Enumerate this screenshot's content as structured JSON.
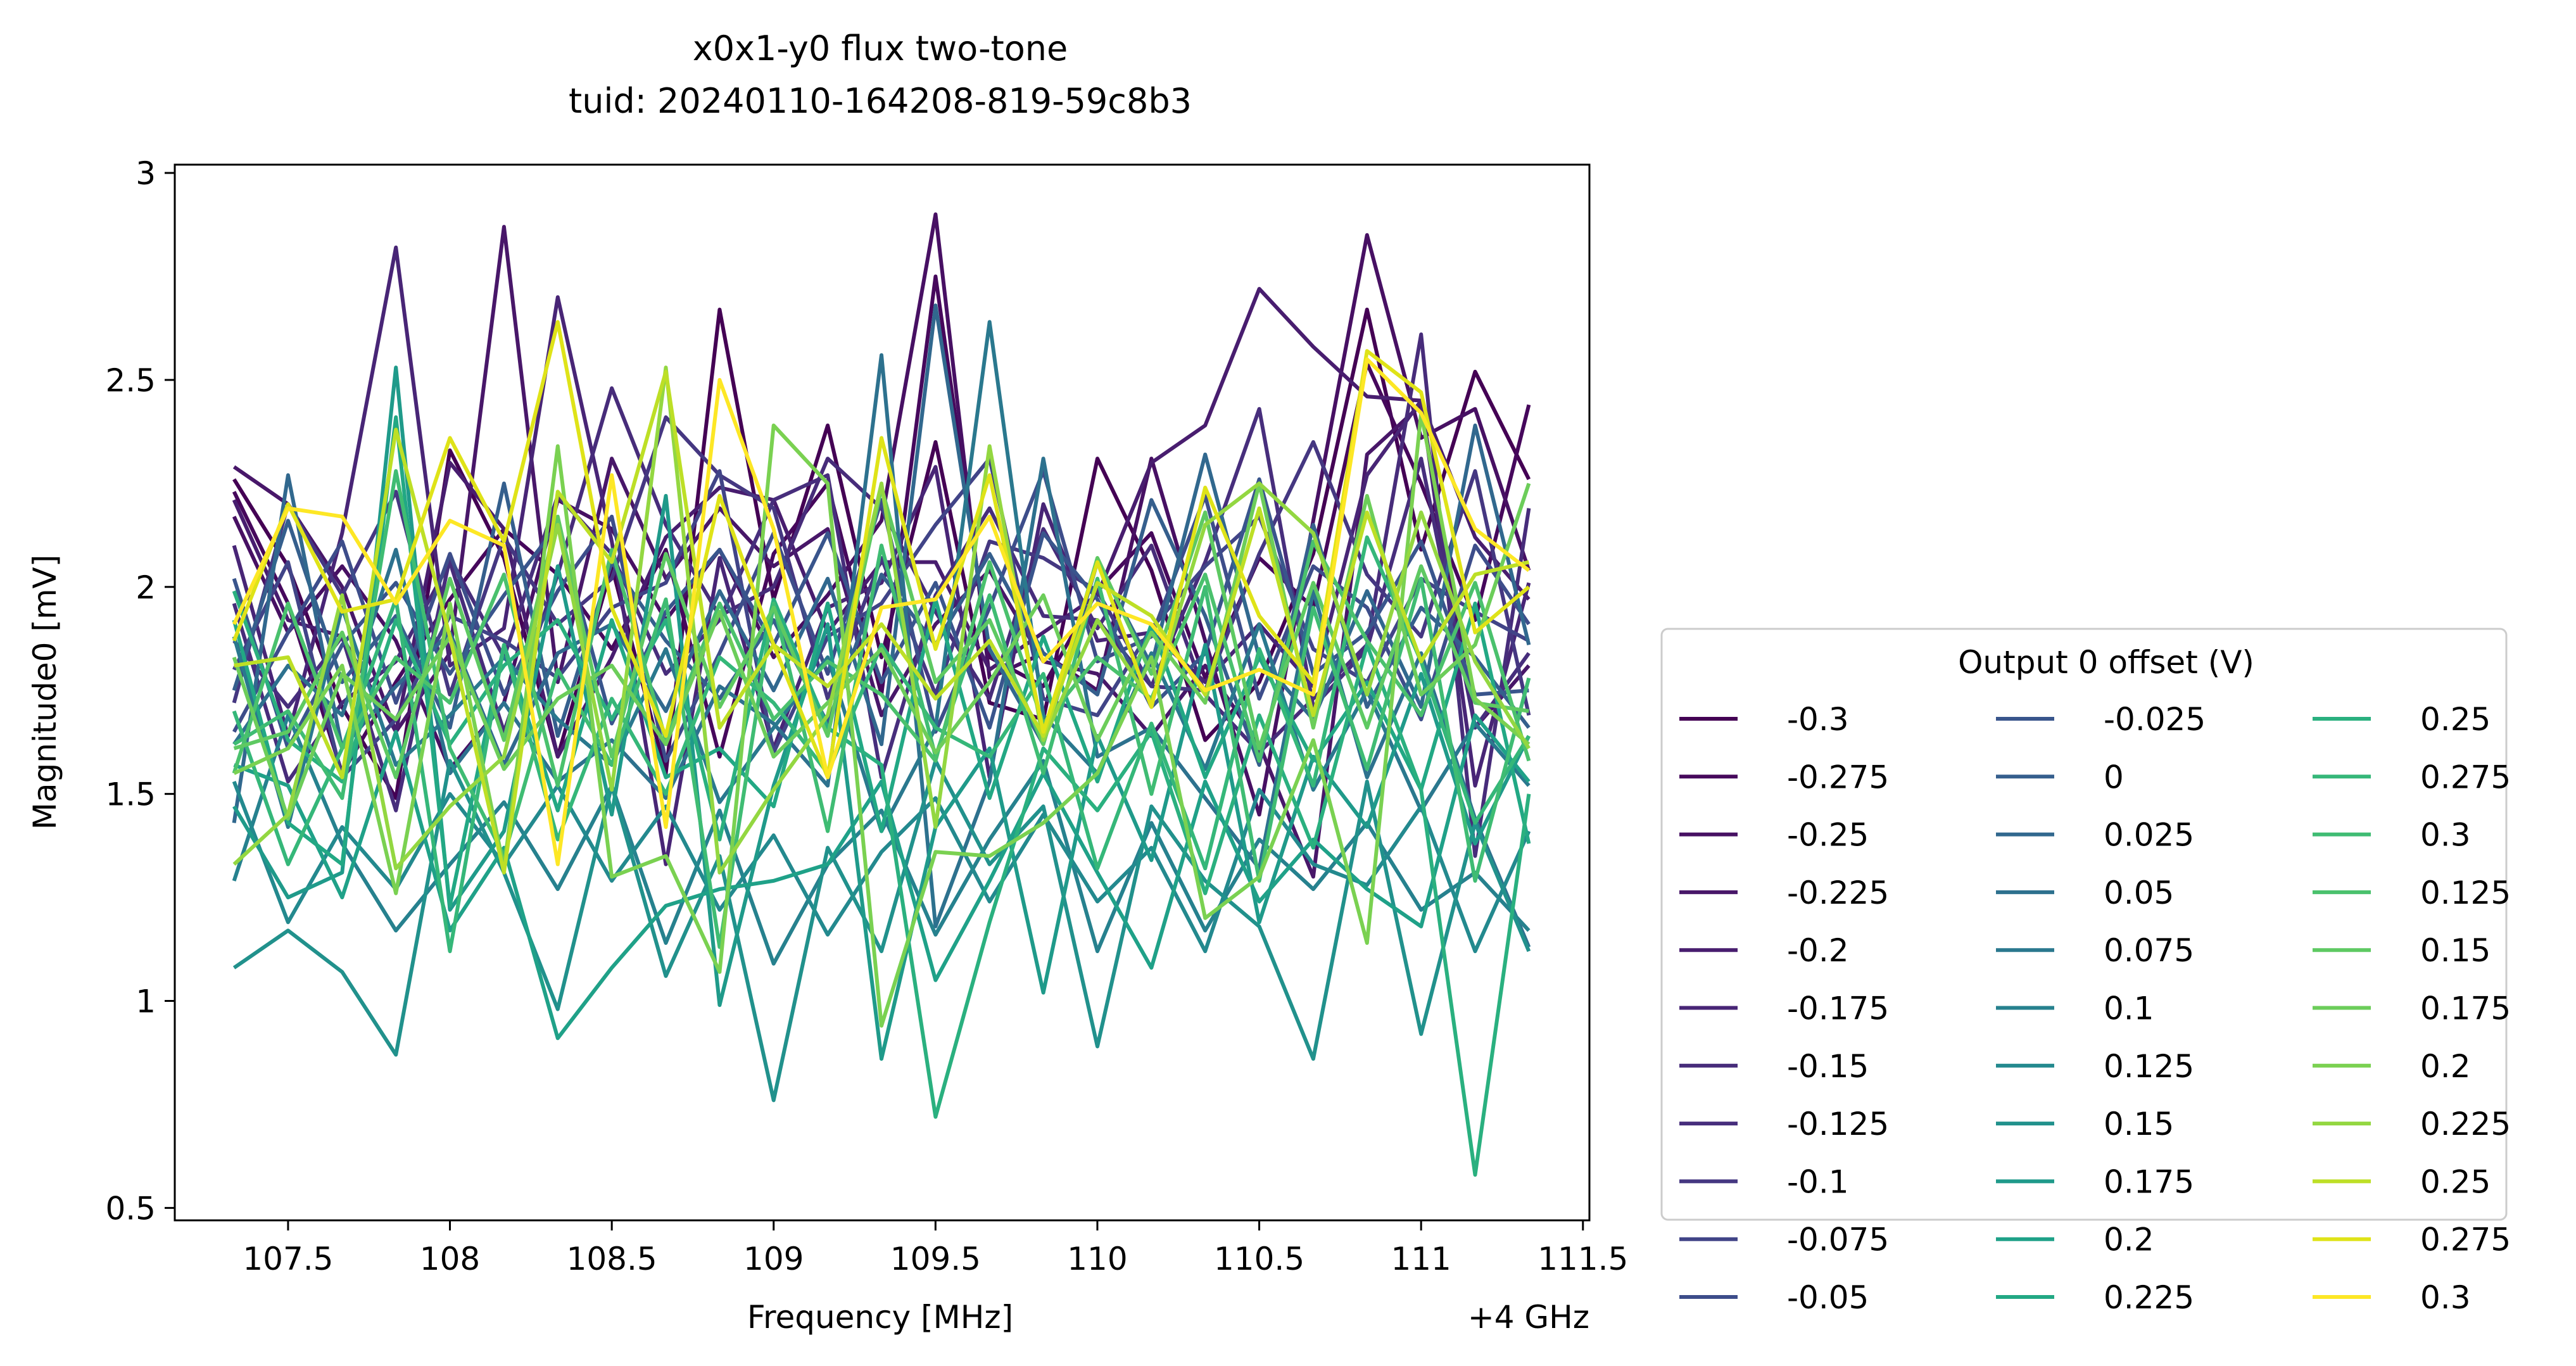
{
  "chart_data": {
    "type": "line",
    "title": "x0x1-y0 flux two-tone",
    "subtitle": "tuid: 20240110-164208-819-59c8b3",
    "xlabel": "Frequency [MHz]",
    "ylabel": "Magnitude0 [mV]",
    "x_offset_label": "+4 GHz",
    "xlim": [
      107.15,
      111.52
    ],
    "ylim": [
      0.47,
      3.02
    ],
    "x_ticks": [
      "107.5",
      "108",
      "108.5",
      "109",
      "109.5",
      "110",
      "110.5",
      "111",
      "111.5"
    ],
    "x_tick_values": [
      107.5,
      108,
      108.5,
      109,
      109.5,
      110,
      110.5,
      111,
      111.5
    ],
    "y_ticks": [
      "0.5",
      "1",
      "1.5",
      "2",
      "2.5",
      "3"
    ],
    "y_tick_values": [
      0.5,
      1,
      1.5,
      2,
      2.5,
      3
    ],
    "grid": false,
    "legend_title": "Output 0 offset (V)",
    "legend_position": "right",
    "legend_columns": 3,
    "x": [
      107.333,
      107.5,
      107.667,
      107.833,
      108.0,
      108.167,
      108.333,
      108.5,
      108.667,
      108.833,
      109.0,
      109.167,
      109.333,
      109.5,
      109.667,
      109.833,
      110.0,
      110.167,
      110.333,
      110.5,
      110.667,
      110.833,
      111.0,
      111.167,
      111.333
    ],
    "series": [
      {
        "name": "-0.3",
        "color": "#440154",
        "values": [
          2.26,
          2.05,
          1.71,
          1.49,
          2.33,
          2.07,
          1.59,
          2.05,
          1.55,
          2.67,
          1.97,
          2.39,
          1.83,
          2.35,
          1.72,
          1.68,
          2.31,
          2.04,
          1.63,
          1.77,
          2.08,
          2.67,
          2.09,
          2.52,
          2.26
        ]
      },
      {
        "name": "-0.275",
        "color": "#46085c",
        "values": [
          2.23,
          1.96,
          1.55,
          1.77,
          1.97,
          2.14,
          2.03,
          1.85,
          2.09,
          1.59,
          2.08,
          2.25,
          1.74,
          2.75,
          1.83,
          1.76,
          1.99,
          2.13,
          1.78,
          2.07,
          1.95,
          2.54,
          2.25,
          1.92,
          2.44
        ]
      },
      {
        "name": "-0.25",
        "color": "#471063",
        "values": [
          2.17,
          1.89,
          2.05,
          1.87,
          1.56,
          1.72,
          2.21,
          2.14,
          1.92,
          2.09,
          1.83,
          1.98,
          2.16,
          2.9,
          1.78,
          1.84,
          1.75,
          2.31,
          1.87,
          1.45,
          2.16,
          2.85,
          2.36,
          2.43,
          2.04
        ]
      },
      {
        "name": "-0.225",
        "color": "#481769",
        "values": [
          2.29,
          2.2,
          2.0,
          1.65,
          1.84,
          2.87,
          1.77,
          2.31,
          2.02,
          2.19,
          2.05,
          2.14,
          1.69,
          1.91,
          2.04,
          1.82,
          1.79,
          1.64,
          1.81,
          1.62,
          1.3,
          2.32,
          2.44,
          1.66,
          1.81
        ]
      },
      {
        "name": "-0.2",
        "color": "#481d6f",
        "values": [
          2.21,
          1.92,
          1.88,
          1.65,
          2.3,
          2.14,
          1.59,
          1.83,
          2.12,
          2.24,
          2.21,
          1.89,
          2.06,
          2.06,
          1.8,
          1.89,
          1.98,
          2.3,
          2.39,
          2.72,
          2.58,
          2.46,
          2.45,
          2.12,
          1.97
        ]
      },
      {
        "name": "-0.175",
        "color": "#482576",
        "values": [
          2.1,
          1.64,
          2.13,
          2.82,
          1.81,
          1.9,
          2.7,
          2.11,
          1.33,
          2.07,
          1.61,
          1.95,
          2.01,
          2.29,
          1.54,
          2.2,
          1.87,
          1.89,
          1.77,
          1.91,
          1.76,
          2.27,
          2.45,
          1.52,
          2.01
        ]
      },
      {
        "name": "-0.15",
        "color": "#472c7a",
        "values": [
          1.96,
          1.53,
          1.72,
          1.82,
          2.06,
          1.65,
          2.03,
          2.48,
          2.15,
          1.93,
          2.0,
          2.31,
          2.19,
          1.94,
          1.73,
          2.14,
          1.9,
          2.1,
          1.74,
          1.6,
          1.73,
          1.86,
          2.61,
          1.35,
          2.19
        ]
      },
      {
        "name": "-0.125",
        "color": "#472e7c",
        "values": [
          1.87,
          1.71,
          1.88,
          1.46,
          2.07,
          1.83,
          2.22,
          2.08,
          1.79,
          1.92,
          2.21,
          2.27,
          1.54,
          1.98,
          2.19,
          1.93,
          1.92,
          1.76,
          2.06,
          2.43,
          1.71,
          1.85,
          2.31,
          1.66,
          1.84
        ]
      },
      {
        "name": "-0.1",
        "color": "#453781",
        "values": [
          1.72,
          2.2,
          1.98,
          2.23,
          1.74,
          2.12,
          1.91,
          2.02,
          2.41,
          2.27,
          2.19,
          1.73,
          2.07,
          1.74,
          2.11,
          2.07,
          1.99,
          1.76,
          1.75,
          2.08,
          2.35,
          2.03,
          1.88,
          2.28,
          1.69
        ]
      },
      {
        "name": "-0.075",
        "color": "#414487",
        "values": [
          1.8,
          2.06,
          1.54,
          1.68,
          1.93,
          1.87,
          1.78,
          1.95,
          2.01,
          2.28,
          1.6,
          1.88,
          1.96,
          2.15,
          2.31,
          1.73,
          1.69,
          1.9,
          2.05,
          2.17,
          1.85,
          1.77,
          2.02,
          1.94,
          1.87
        ]
      },
      {
        "name": "-0.05",
        "color": "#3d4d8a",
        "values": [
          1.65,
          1.89,
          2.11,
          1.72,
          2.08,
          1.74,
          1.99,
          2.17,
          1.58,
          1.84,
          2.13,
          1.79,
          2.21,
          1.65,
          1.95,
          2.28,
          1.82,
          1.88,
          2.22,
          1.73,
          2.05,
          1.95,
          1.68,
          2.1,
          1.91
        ]
      },
      {
        "name": "-0.025",
        "color": "#39558c",
        "values": [
          2.02,
          1.61,
          1.86,
          2.01,
          1.79,
          1.98,
          2.15,
          1.67,
          1.94,
          2.09,
          1.86,
          2.13,
          1.77,
          2.01,
          1.66,
          2.13,
          1.97,
          1.71,
          1.84,
          2.26,
          1.79,
          1.89,
          2.11,
          1.74,
          1.75
        ]
      },
      {
        "name": "0",
        "color": "#355f8d",
        "values": [
          1.75,
          2.16,
          1.77,
          1.93,
          1.66,
          2.25,
          1.64,
          2.06,
          1.87,
          1.73,
          1.92,
          1.67,
          2.03,
          1.86,
          2.08,
          1.84,
          1.74,
          2.21,
          1.93,
          1.57,
          2.15,
          1.71,
          1.95,
          1.83,
          1.66
        ]
      },
      {
        "name": "0.025",
        "color": "#31688e",
        "values": [
          1.43,
          2.27,
          1.61,
          1.76,
          1.89,
          1.57,
          1.84,
          1.91,
          1.7,
          1.99,
          1.75,
          2.02,
          1.62,
          2.68,
          1.85,
          1.62,
          2.06,
          1.81,
          2.32,
          1.83,
          1.68,
          1.99,
          1.71,
          2.39,
          1.86
        ]
      },
      {
        "name": "0.05",
        "color": "#2d718e",
        "values": [
          1.62,
          1.81,
          1.69,
          2.09,
          1.55,
          1.72,
          1.53,
          1.63,
          1.49,
          1.76,
          1.67,
          1.52,
          2.56,
          1.18,
          1.53,
          2.31,
          1.59,
          1.66,
          1.49,
          1.32,
          1.99,
          1.54,
          1.84,
          1.44,
          1.13
        ]
      },
      {
        "name": "0.075",
        "color": "#2a788e",
        "values": [
          1.88,
          1.42,
          1.95,
          1.57,
          1.69,
          1.83,
          1.68,
          1.57,
          1.85,
          1.48,
          1.66,
          1.83,
          1.41,
          1.66,
          2.64,
          1.69,
          1.55,
          1.84,
          1.56,
          1.91,
          1.51,
          1.75,
          1.46,
          1.67,
          1.52
        ]
      },
      {
        "name": "0.1",
        "color": "#26818e",
        "values": [
          1.29,
          1.69,
          1.38,
          1.17,
          1.33,
          1.48,
          1.27,
          1.52,
          1.14,
          1.46,
          1.09,
          1.33,
          1.46,
          1.16,
          1.39,
          1.58,
          1.12,
          1.43,
          1.17,
          1.39,
          1.27,
          1.43,
          1.22,
          1.31,
          1.17
        ]
      },
      {
        "name": "0.125",
        "color": "#23898e",
        "values": [
          1.53,
          1.19,
          1.42,
          1.27,
          1.5,
          1.33,
          1.52,
          1.29,
          1.47,
          1.22,
          1.4,
          1.16,
          1.36,
          1.49,
          1.24,
          1.45,
          1.24,
          1.37,
          1.12,
          1.51,
          1.33,
          1.28,
          1.47,
          1.12,
          1.41
        ]
      },
      {
        "name": "0.15",
        "color": "#21918c",
        "values": [
          1.08,
          1.17,
          1.07,
          0.87,
          1.58,
          1.31,
          0.98,
          1.52,
          1.06,
          1.35,
          0.76,
          1.37,
          1.12,
          1.58,
          1.33,
          1.47,
          0.89,
          1.47,
          1.29,
          1.18,
          0.86,
          1.53,
          0.92,
          1.43,
          1.12
        ]
      },
      {
        "name": "0.175",
        "color": "#1f9a8a",
        "values": [
          1.47,
          1.25,
          1.31,
          2.53,
          1.22,
          1.41,
          2.05,
          1.45,
          2.22,
          0.99,
          1.52,
          1.91,
          0.86,
          1.42,
          1.61,
          1.02,
          1.64,
          1.34,
          1.86,
          1.19,
          1.59,
          1.42,
          1.79,
          1.38,
          1.64
        ]
      },
      {
        "name": "0.2",
        "color": "#1fa188",
        "values": [
          1.57,
          1.52,
          1.25,
          1.65,
          1.17,
          1.37,
          0.91,
          1.08,
          1.23,
          1.27,
          1.29,
          1.33,
          1.53,
          1.05,
          1.29,
          1.55,
          1.31,
          1.08,
          1.53,
          1.24,
          1.39,
          1.27,
          1.18,
          1.69,
          1.53
        ]
      },
      {
        "name": "0.225",
        "color": "#22a884",
        "values": [
          1.92,
          1.43,
          1.33,
          2.41,
          1.23,
          1.86,
          1.46,
          1.92,
          1.54,
          1.61,
          1.47,
          1.96,
          1.41,
          1.97,
          1.49,
          1.88,
          1.53,
          1.91,
          1.54,
          1.83,
          1.58,
          1.77,
          1.51,
          1.96,
          1.38
        ]
      },
      {
        "name": "0.25",
        "color": "#2ab07f",
        "values": [
          1.99,
          1.63,
          1.53,
          1.92,
          1.62,
          1.81,
          1.92,
          1.68,
          1.92,
          1.39,
          1.97,
          1.66,
          1.57,
          0.72,
          1.19,
          1.61,
          1.46,
          1.65,
          1.26,
          1.69,
          1.37,
          1.86,
          1.51,
          0.58,
          1.5
        ]
      },
      {
        "name": "0.275",
        "color": "#35b779",
        "values": [
          1.7,
          1.33,
          1.61,
          1.97,
          1.12,
          1.86,
          1.39,
          1.73,
          1.5,
          1.83,
          1.72,
          1.55,
          1.86,
          1.66,
          1.59,
          1.79,
          1.32,
          1.67,
          1.32,
          1.85,
          1.52,
          2.12,
          1.82,
          1.43,
          1.64
        ]
      },
      {
        "name": "0.3",
        "color": "#3fbc73",
        "values": [
          1.62,
          1.7,
          1.49,
          2.28,
          1.61,
          1.35,
          1.8,
          1.57,
          1.97,
          1.13,
          1.96,
          1.41,
          2.1,
          1.59,
          1.98,
          1.55,
          2.02,
          1.5,
          2.0,
          1.29,
          1.95,
          1.56,
          2.02,
          1.29,
          1.78
        ]
      },
      {
        "name": "0.125",
        "color": "#4ac16d",
        "values": [
          1.55,
          1.96,
          1.61,
          1.83,
          1.72,
          2.03,
          1.52,
          2.09,
          1.63,
          1.96,
          1.68,
          1.82,
          1.74,
          1.58,
          2.06,
          1.67,
          1.83,
          1.73,
          2.03,
          1.58,
          2.11,
          1.87,
          1.69,
          2.01,
          1.58
        ]
      },
      {
        "name": "0.15",
        "color": "#5ec962",
        "values": [
          1.61,
          1.65,
          1.89,
          1.54,
          2.02,
          1.63,
          2.17,
          1.59,
          2.08,
          1.71,
          1.95,
          1.64,
          2.24,
          1.77,
          1.92,
          1.62,
          2.07,
          1.79,
          2.18,
          1.61,
          2.01,
          1.66,
          2.05,
          1.72,
          1.7
        ]
      },
      {
        "name": "0.175",
        "color": "#6ccd5a",
        "values": [
          1.83,
          1.44,
          1.79,
          1.68,
          1.88,
          1.56,
          1.73,
          1.81,
          1.62,
          1.94,
          1.59,
          1.72,
          1.85,
          1.6,
          1.77,
          1.98,
          1.63,
          1.89,
          1.72,
          2.25,
          1.66,
          2.22,
          1.74,
          1.86,
          2.25
        ]
      },
      {
        "name": "0.2",
        "color": "#7ad151",
        "values": [
          1.55,
          1.61,
          1.81,
          1.26,
          1.96,
          1.32,
          2.34,
          1.3,
          1.35,
          1.07,
          2.39,
          2.25,
          0.94,
          1.36,
          1.35,
          1.43,
          1.55,
          1.83,
          1.2,
          1.3,
          1.63,
          1.14,
          2.42,
          1.73,
          1.62
        ]
      },
      {
        "name": "0.225",
        "color": "#93d741",
        "values": [
          1.33,
          1.45,
          1.98,
          1.32,
          1.47,
          1.59,
          2.15,
          1.51,
          2.53,
          1.31,
          1.51,
          1.69,
          2.25,
          1.42,
          2.34,
          1.63,
          1.92,
          1.72,
          2.15,
          2.25,
          2.13,
          1.74,
          2.18,
          1.82,
          1.61
        ]
      },
      {
        "name": "0.25",
        "color": "#bddf26",
        "values": [
          1.81,
          1.83,
          1.54,
          2.38,
          1.88,
          1.31,
          2.23,
          2.06,
          2.52,
          1.66,
          1.86,
          1.76,
          1.91,
          1.73,
          1.87,
          1.64,
          2.01,
          1.93,
          1.74,
          2.19,
          1.69,
          2.18,
          1.82,
          2.03,
          2.06
        ]
      },
      {
        "name": "0.275",
        "color": "#dfe318",
        "values": [
          1.87,
          2.2,
          1.94,
          1.97,
          2.36,
          2.11,
          2.64,
          1.95,
          1.64,
          2.22,
          1.86,
          1.54,
          2.36,
          1.85,
          2.27,
          1.65,
          2.06,
          1.71,
          2.24,
          1.93,
          1.77,
          2.57,
          2.47,
          1.89,
          2.0
        ]
      },
      {
        "name": "0.3",
        "color": "#fde725",
        "values": [
          1.91,
          2.19,
          2.17,
          1.96,
          2.16,
          2.1,
          1.33,
          2.27,
          1.42,
          2.5,
          2.14,
          1.54,
          1.95,
          1.97,
          2.17,
          1.82,
          1.96,
          1.91,
          1.75,
          1.8,
          1.74,
          2.55,
          2.42,
          2.14,
          2.04
        ]
      }
    ]
  }
}
